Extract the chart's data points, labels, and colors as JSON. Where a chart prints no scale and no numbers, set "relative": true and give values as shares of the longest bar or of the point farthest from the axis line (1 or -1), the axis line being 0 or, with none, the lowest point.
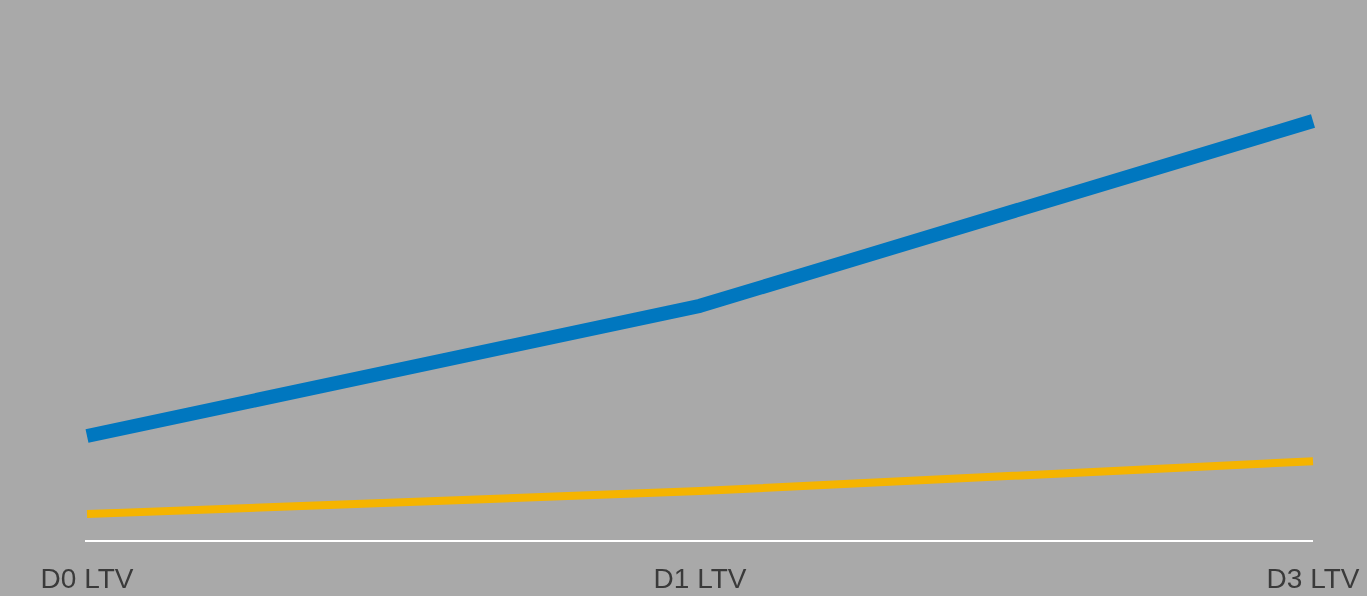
{
  "chart_data": {
    "type": "line",
    "relative": true,
    "categories": [
      "D0 LTV",
      "D1 LTV",
      "D3 LTV"
    ],
    "series": [
      {
        "color": "#0077bf",
        "values": [
          0.25,
          0.56,
          1
        ]
      },
      {
        "color": "#f5b400",
        "values": [
          0.064,
          0.119,
          0.19
        ]
      }
    ],
    "marker": "none",
    "line_style": "solid"
  }
}
